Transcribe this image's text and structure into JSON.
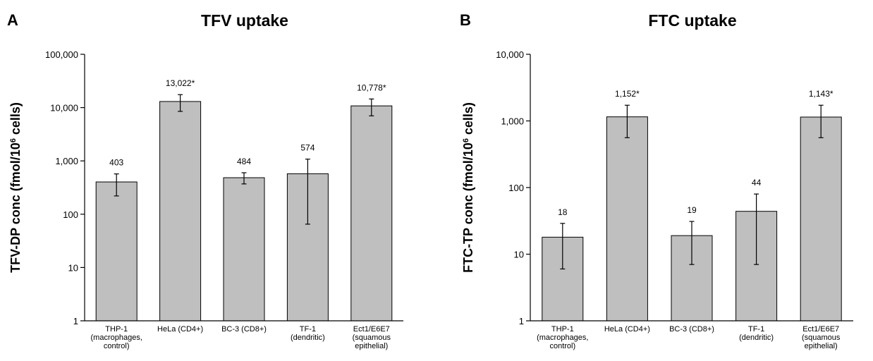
{
  "chart_data": [
    {
      "panel_letter": "A",
      "type": "bar",
      "title": "TFV uptake",
      "ylabel_main": "TFV-DP conc (fmol/10",
      "ylabel_sup": "6",
      "ylabel_end": " cells)",
      "xlabel": "",
      "yscale": "log",
      "ylim": [
        1,
        100000
      ],
      "yticks": [
        1,
        10,
        100,
        1000,
        10000,
        100000
      ],
      "ytick_labels": [
        "1",
        "10",
        "100",
        "1,000",
        "10,000",
        "100,000"
      ],
      "categories": [
        [
          "THP-1",
          "(macrophages,",
          "control)"
        ],
        [
          "HeLa (CD4+)"
        ],
        [
          "BC-3 (CD8+)"
        ],
        [
          "TF-1",
          "(dendritic)"
        ],
        [
          "Ect1/E6E7",
          "(squamous",
          "epithelial)"
        ]
      ],
      "values": [
        403,
        13022,
        484,
        574,
        10778
      ],
      "value_labels": [
        "403",
        "13,022*",
        "484",
        "574",
        "10,778*"
      ],
      "error_low": [
        220,
        8500,
        370,
        65,
        7000
      ],
      "error_high": [
        570,
        17500,
        600,
        1080,
        14500
      ],
      "bar_color": "#bfbfbf",
      "grid": false,
      "legend": "none"
    },
    {
      "panel_letter": "B",
      "type": "bar",
      "title": "FTC uptake",
      "ylabel_main": "FTC-TP conc (fmol/10",
      "ylabel_sup": "6",
      "ylabel_end": " cells)",
      "xlabel": "",
      "yscale": "log",
      "ylim": [
        1,
        10000
      ],
      "yticks": [
        1,
        10,
        100,
        1000,
        10000
      ],
      "ytick_labels": [
        "1",
        "10",
        "100",
        "1,000",
        "10,000"
      ],
      "categories": [
        [
          "THP-1",
          "(macrophages,",
          "control)"
        ],
        [
          "HeLa (CD4+)"
        ],
        [
          "BC-3 (CD8+)"
        ],
        [
          "TF-1",
          "(dendritic)"
        ],
        [
          "Ect1/E6E7",
          "(squamous",
          "epithelial)"
        ]
      ],
      "values": [
        18,
        1152,
        19,
        44,
        1143
      ],
      "value_labels": [
        "18",
        "1,152*",
        "19",
        "44",
        "1,143*"
      ],
      "error_low": [
        6,
        560,
        7,
        7,
        560
      ],
      "error_high": [
        29,
        1720,
        31,
        80,
        1720
      ],
      "bar_color": "#bfbfbf",
      "grid": false,
      "legend": "none"
    }
  ]
}
